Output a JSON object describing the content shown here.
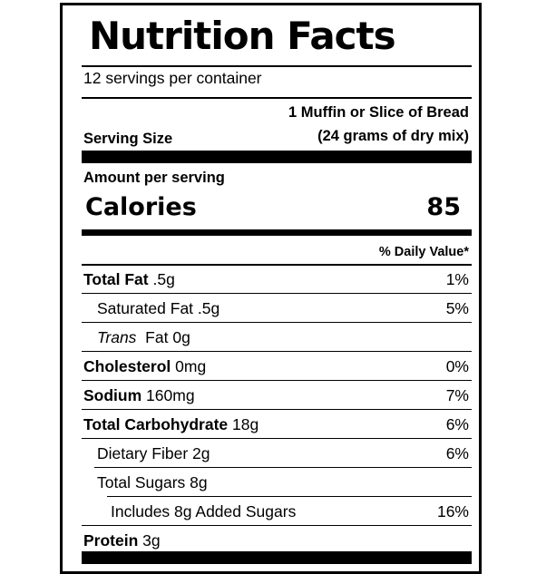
{
  "label": {
    "title": "Nutrition Facts",
    "servings_per_container": "12 servings per container",
    "serving_size": {
      "label": "Serving Size",
      "line1": "1 Muffin or Slice of Bread",
      "line2": "(24 grams of dry mix)"
    },
    "amount_per_serving": "Amount per serving",
    "calories": {
      "label": "Calories",
      "value": "85"
    },
    "daily_value_header": "% Daily Value*",
    "nutrients": [
      {
        "name": "Total Fat",
        "amount": ".5g",
        "dv": "1%"
      },
      {
        "name": "Saturated Fat",
        "amount": ".5g",
        "dv": "5%"
      },
      {
        "name_italic": "Trans",
        "name": "Fat",
        "amount": "0g",
        "dv": ""
      },
      {
        "name": "Cholesterol",
        "amount": "0mg",
        "dv": "0%"
      },
      {
        "name": "Sodium",
        "amount": "160mg",
        "dv": "7%"
      },
      {
        "name": "Total Carbohydrate",
        "amount": "18g",
        "dv": "6%"
      },
      {
        "name": "Dietary Fiber",
        "amount": "2g",
        "dv": "6%"
      },
      {
        "name": "Total Sugars",
        "amount": "8g",
        "dv": ""
      },
      {
        "name": "Includes 8g Added Sugars",
        "amount": "",
        "dv": "16%"
      },
      {
        "name": "Protein",
        "amount": "3g",
        "dv": ""
      }
    ]
  }
}
